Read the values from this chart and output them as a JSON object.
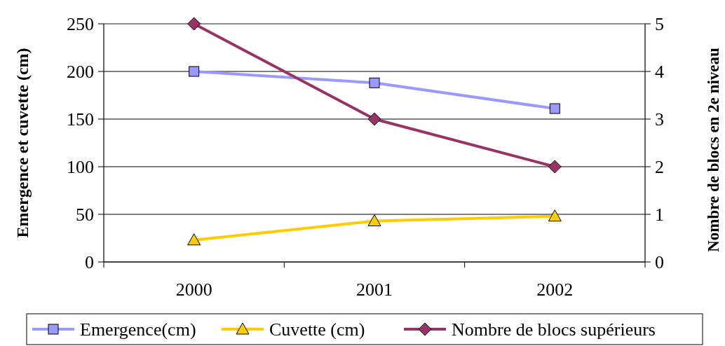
{
  "chart_data": {
    "type": "line",
    "categories": [
      "2000",
      "2001",
      "2002"
    ],
    "ylabel": "Emergence et cuvette (cm)",
    "y2label": "Nombre de blocs en 2e niveau",
    "ylim": [
      0,
      250
    ],
    "yticks": [
      0,
      50,
      100,
      150,
      200,
      250
    ],
    "y2lim": [
      0,
      5
    ],
    "y2ticks": [
      0,
      1,
      2,
      3,
      4,
      5
    ],
    "grid": "y",
    "legend": "bottom",
    "series": [
      {
        "name": "Emergence(cm)",
        "color": "#9999ff",
        "marker": "square",
        "values": [
          200,
          188,
          161
        ]
      },
      {
        "name": "Cuvette (cm)",
        "color": "#ffcc00",
        "marker": "triangle",
        "values": [
          23,
          43,
          48
        ]
      },
      {
        "name": "Nombre de blocs supérieurs",
        "color": "#993366",
        "marker": "diamond",
        "axis": "y2",
        "values": [
          5,
          3,
          2
        ]
      }
    ]
  }
}
